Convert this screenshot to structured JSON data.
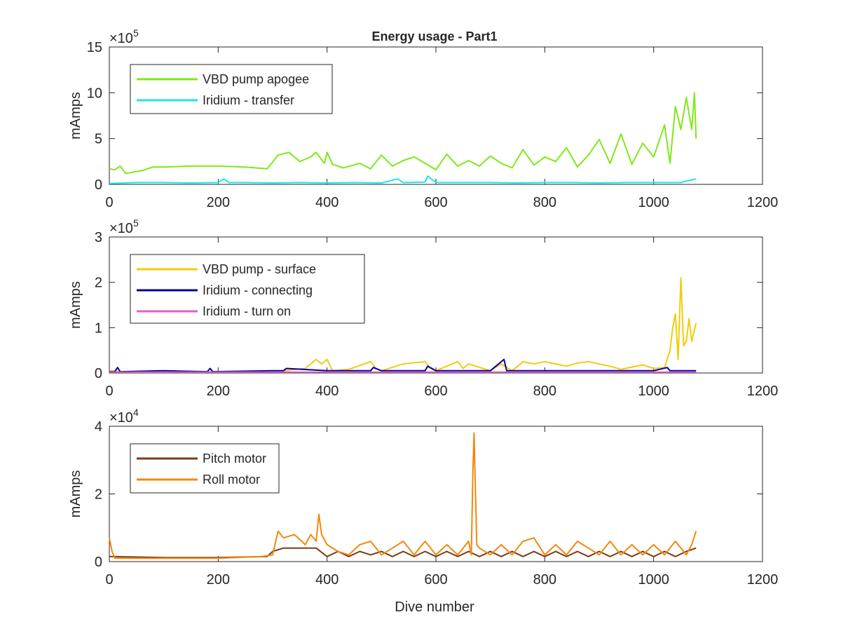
{
  "figure": {
    "title": "Energy usage - Part1",
    "xlabel": "Dive number"
  },
  "chart_data": [
    {
      "type": "line",
      "title": "Energy usage - Part1",
      "xlabel": "",
      "ylabel": "mAmps",
      "xlim": [
        0,
        1200
      ],
      "ylim": [
        0,
        15
      ],
      "y_exponent": "5",
      "xticks": [
        0,
        200,
        400,
        600,
        800,
        1000,
        1200
      ],
      "yticks": [
        0,
        5,
        10,
        15
      ],
      "grid": false,
      "legend_position": "top-left",
      "series": [
        {
          "name": "VBD pump apogee",
          "color": "#80e81a",
          "x": [
            0,
            10,
            20,
            30,
            40,
            60,
            80,
            100,
            150,
            200,
            250,
            290,
            310,
            330,
            350,
            370,
            380,
            395,
            400,
            410,
            430,
            460,
            480,
            500,
            520,
            540,
            560,
            580,
            600,
            620,
            640,
            660,
            680,
            700,
            720,
            740,
            760,
            780,
            800,
            820,
            840,
            860,
            880,
            900,
            920,
            940,
            960,
            980,
            1000,
            1020,
            1030,
            1040,
            1050,
            1060,
            1070,
            1075,
            1078
          ],
          "values": [
            1.7,
            1.6,
            2.0,
            1.2,
            1.3,
            1.5,
            1.9,
            1.9,
            2.0,
            2.0,
            1.9,
            1.7,
            3.2,
            3.5,
            2.5,
            3.0,
            3.5,
            2.3,
            3.5,
            2.2,
            1.8,
            2.3,
            1.7,
            3.2,
            2.0,
            2.6,
            3.0,
            2.3,
            1.6,
            3.3,
            2.0,
            2.6,
            2.0,
            3.1,
            2.3,
            1.8,
            3.8,
            2.1,
            3.0,
            2.5,
            4.0,
            1.9,
            3.2,
            4.9,
            2.3,
            5.5,
            2.2,
            4.5,
            3.0,
            6.5,
            2.3,
            8.5,
            6.0,
            9.5,
            6.0,
            10.0,
            5.0
          ]
        },
        {
          "name": "Iridium - transfer",
          "color": "#1ae6f2",
          "x": [
            0,
            50,
            100,
            150,
            200,
            210,
            220,
            250,
            300,
            350,
            400,
            450,
            500,
            530,
            540,
            580,
            585,
            600,
            650,
            700,
            750,
            800,
            850,
            900,
            950,
            1000,
            1050,
            1070,
            1078
          ],
          "values": [
            0.1,
            0.2,
            0.2,
            0.15,
            0.2,
            0.6,
            0.2,
            0.2,
            0.15,
            0.2,
            0.15,
            0.2,
            0.15,
            0.6,
            0.2,
            0.25,
            0.9,
            0.2,
            0.2,
            0.2,
            0.15,
            0.2,
            0.2,
            0.15,
            0.2,
            0.2,
            0.2,
            0.5,
            0.6
          ]
        }
      ]
    },
    {
      "type": "line",
      "title": "",
      "xlabel": "",
      "ylabel": "mAmps",
      "xlim": [
        0,
        1200
      ],
      "ylim": [
        0,
        3
      ],
      "y_exponent": "5",
      "xticks": [
        0,
        200,
        400,
        600,
        800,
        1000,
        1200
      ],
      "yticks": [
        0,
        1,
        2,
        3
      ],
      "grid": false,
      "legend_position": "top-left",
      "series": [
        {
          "name": "VBD pump - surface",
          "color": "#f2cc0d",
          "x": [
            0,
            20,
            50,
            100,
            200,
            300,
            320,
            360,
            380,
            390,
            400,
            410,
            440,
            480,
            490,
            500,
            540,
            580,
            590,
            600,
            640,
            650,
            660,
            700,
            720,
            740,
            760,
            780,
            800,
            820,
            840,
            860,
            880,
            900,
            920,
            940,
            980,
            1000,
            1020,
            1030,
            1035,
            1040,
            1045,
            1050,
            1055,
            1060,
            1065,
            1070,
            1078
          ],
          "values": [
            0.05,
            0.03,
            0.02,
            0.02,
            0.03,
            0.04,
            0.05,
            0.1,
            0.3,
            0.2,
            0.3,
            0.05,
            0.08,
            0.25,
            0.1,
            0.05,
            0.2,
            0.25,
            0.1,
            0.05,
            0.25,
            0.1,
            0.2,
            0.05,
            0.2,
            0.05,
            0.25,
            0.2,
            0.25,
            0.2,
            0.15,
            0.22,
            0.25,
            0.2,
            0.15,
            0.08,
            0.18,
            0.1,
            0.12,
            0.5,
            1.0,
            1.3,
            0.3,
            2.1,
            0.6,
            0.7,
            1.2,
            0.7,
            1.1
          ]
        },
        {
          "name": "Iridium - connecting",
          "color": "#0000a6",
          "x": [
            0,
            10,
            15,
            20,
            100,
            180,
            185,
            190,
            300,
            320,
            325,
            400,
            480,
            485,
            500,
            580,
            585,
            600,
            700,
            725,
            730,
            800,
            900,
            1000,
            1025,
            1030,
            1078
          ],
          "values": [
            0.03,
            0.03,
            0.12,
            0.03,
            0.05,
            0.03,
            0.1,
            0.03,
            0.05,
            0.05,
            0.1,
            0.05,
            0.05,
            0.12,
            0.05,
            0.05,
            0.15,
            0.05,
            0.05,
            0.3,
            0.05,
            0.05,
            0.05,
            0.05,
            0.12,
            0.05,
            0.05
          ]
        },
        {
          "name": "Iridium - turn on",
          "color": "#e660bf",
          "x": [
            0,
            1078
          ],
          "values": [
            0.02,
            0.02
          ]
        }
      ]
    },
    {
      "type": "line",
      "title": "",
      "xlabel": "Dive number",
      "ylabel": "mAmps",
      "xlim": [
        0,
        1200
      ],
      "ylim": [
        0,
        4
      ],
      "y_exponent": "4",
      "xticks": [
        0,
        200,
        400,
        600,
        800,
        1000,
        1200
      ],
      "yticks": [
        0,
        2,
        4
      ],
      "grid": false,
      "legend_position": "top-left",
      "series": [
        {
          "name": "Pitch motor",
          "color": "#7a3d14",
          "x": [
            0,
            100,
            200,
            290,
            300,
            320,
            380,
            400,
            420,
            440,
            460,
            480,
            500,
            520,
            540,
            560,
            580,
            600,
            620,
            640,
            660,
            680,
            700,
            720,
            740,
            760,
            780,
            800,
            820,
            840,
            860,
            880,
            900,
            920,
            940,
            960,
            980,
            1000,
            1020,
            1040,
            1060,
            1078
          ],
          "values": [
            0.15,
            0.12,
            0.12,
            0.15,
            0.3,
            0.4,
            0.4,
            0.15,
            0.3,
            0.15,
            0.3,
            0.2,
            0.3,
            0.15,
            0.3,
            0.15,
            0.3,
            0.15,
            0.3,
            0.15,
            0.3,
            0.15,
            0.3,
            0.15,
            0.3,
            0.15,
            0.3,
            0.15,
            0.3,
            0.15,
            0.3,
            0.15,
            0.3,
            0.15,
            0.3,
            0.15,
            0.3,
            0.15,
            0.3,
            0.15,
            0.3,
            0.4
          ]
        },
        {
          "name": "Roll motor",
          "color": "#f2880d",
          "x": [
            0,
            5,
            10,
            50,
            100,
            200,
            280,
            300,
            310,
            320,
            340,
            360,
            370,
            380,
            385,
            390,
            400,
            420,
            440,
            460,
            480,
            500,
            520,
            540,
            560,
            580,
            600,
            620,
            640,
            660,
            665,
            668,
            670,
            675,
            680,
            700,
            720,
            740,
            760,
            780,
            800,
            820,
            840,
            860,
            880,
            900,
            920,
            940,
            960,
            980,
            1000,
            1020,
            1040,
            1060,
            1070,
            1078
          ],
          "values": [
            0.7,
            0.3,
            0.1,
            0.1,
            0.1,
            0.1,
            0.15,
            0.2,
            0.9,
            0.7,
            0.8,
            0.5,
            0.8,
            0.6,
            1.4,
            0.8,
            0.5,
            0.3,
            0.2,
            0.5,
            0.6,
            0.2,
            0.4,
            0.6,
            0.2,
            0.6,
            0.2,
            0.5,
            0.2,
            0.6,
            0.2,
            2.7,
            3.8,
            0.5,
            0.4,
            0.2,
            0.5,
            0.2,
            0.6,
            0.7,
            0.2,
            0.5,
            0.2,
            0.6,
            0.4,
            0.2,
            0.6,
            0.2,
            0.5,
            0.2,
            0.5,
            0.2,
            0.6,
            0.2,
            0.5,
            0.9
          ]
        }
      ]
    }
  ]
}
